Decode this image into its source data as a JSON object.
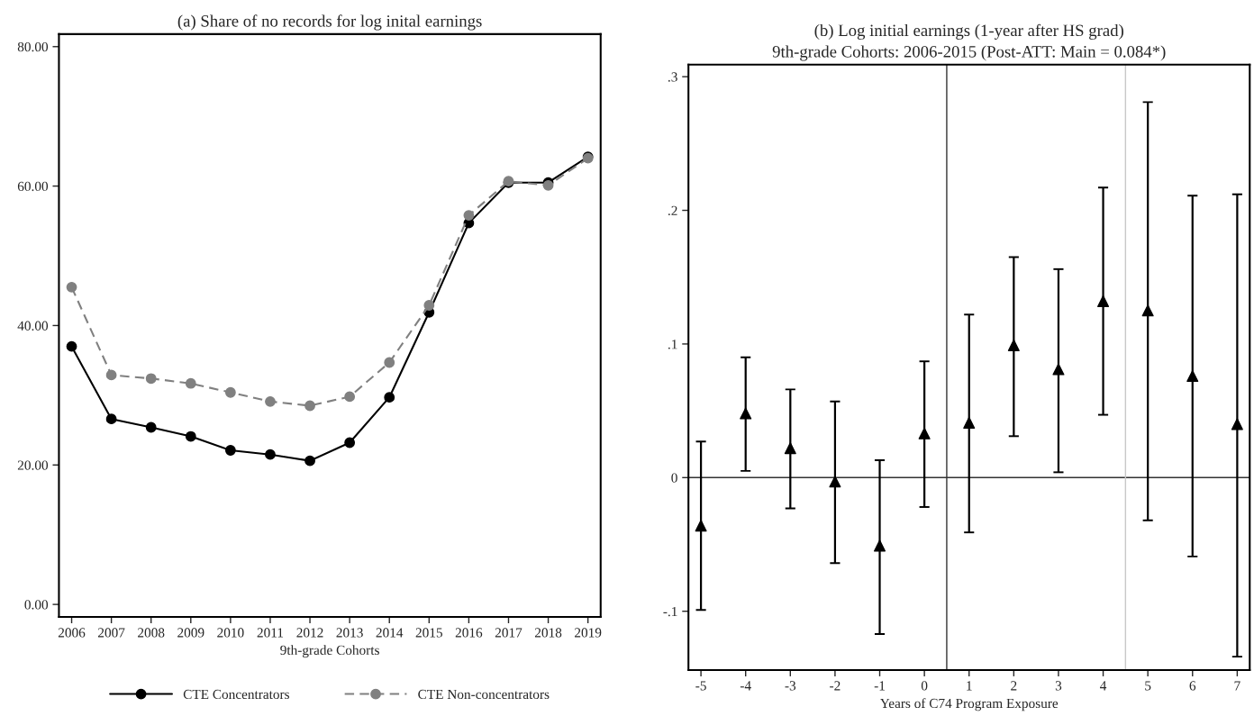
{
  "chart_data": [
    {
      "type": "line",
      "title": "(a) Share of no records for log inital earnings",
      "xlabel": "9th-grade Cohorts",
      "x": [
        2006,
        2007,
        2008,
        2009,
        2010,
        2011,
        2012,
        2013,
        2014,
        2015,
        2016,
        2017,
        2018,
        2019
      ],
      "xlim": [
        2005.68,
        2019.32
      ],
      "xticks": [
        2006,
        2007,
        2008,
        2009,
        2010,
        2011,
        2012,
        2013,
        2014,
        2015,
        2016,
        2017,
        2018,
        2019
      ],
      "ylim": [
        -1.8,
        81.8
      ],
      "yticks": [
        {
          "value": 0,
          "label": "0.00"
        },
        {
          "value": 20,
          "label": "20.00"
        },
        {
          "value": 40,
          "label": "40.00"
        },
        {
          "value": 60,
          "label": "60.00"
        },
        {
          "value": 80,
          "label": "80.00"
        }
      ],
      "marker": "circle",
      "legend": "bottom",
      "series": [
        {
          "name": "CTE Concentrators",
          "color": "#000000",
          "line_style": "solid",
          "values": [
            37.0,
            26.6,
            25.4,
            24.1,
            22.1,
            21.5,
            20.6,
            23.2,
            29.7,
            41.9,
            54.7,
            60.5,
            60.5,
            64.2
          ]
        },
        {
          "name": "CTE Non-concentrators",
          "color": "#808080",
          "line_style": "dashed",
          "values": [
            45.5,
            32.9,
            32.4,
            31.7,
            30.4,
            29.1,
            28.5,
            29.8,
            34.7,
            42.9,
            55.8,
            60.7,
            60.1,
            64.0
          ]
        }
      ]
    },
    {
      "type": "scatter",
      "title": "(b) Log initial earnings (1-year after HS grad)",
      "subtitle": "9th-grade Cohorts: 2006-2015 (Post-ATT: Main = 0.084*)",
      "xlabel": "Years of C74 Program Exposure",
      "x": [
        -5,
        -4,
        -3,
        -2,
        -1,
        0,
        1,
        2,
        3,
        4,
        5,
        6,
        7
      ],
      "xlim": [
        -5.28,
        7.28
      ],
      "xticks": [
        -5,
        -4,
        -3,
        -2,
        -1,
        0,
        1,
        2,
        3,
        4,
        5,
        6,
        7
      ],
      "ylim": [
        -0.144,
        0.309
      ],
      "yticks": [
        {
          "value": -0.1,
          "label": "-.1"
        },
        {
          "value": 0,
          "label": "0"
        },
        {
          "value": 0.1,
          "label": ".1"
        },
        {
          "value": 0.2,
          "label": ".2"
        },
        {
          "value": 0.3,
          "label": ".3"
        }
      ],
      "marker": "triangle",
      "ref_lines": [
        {
          "axis": "y",
          "value": 0,
          "color": "#333333"
        },
        {
          "axis": "x",
          "value": 0.5,
          "color": "#333333"
        },
        {
          "axis": "x",
          "value": 4.5,
          "color": "#c8c8c8"
        }
      ],
      "series": [
        {
          "color": "#000000",
          "values": [
            -0.036,
            0.048,
            0.022,
            -0.003,
            -0.051,
            0.033,
            0.041,
            0.099,
            0.081,
            0.132,
            0.125,
            0.076,
            0.04
          ],
          "errors": [
            [
              -0.099,
              0.027
            ],
            [
              0.005,
              0.09
            ],
            [
              -0.023,
              0.066
            ],
            [
              -0.064,
              0.057
            ],
            [
              -0.117,
              0.013
            ],
            [
              -0.022,
              0.087
            ],
            [
              -0.041,
              0.122
            ],
            [
              0.031,
              0.165
            ],
            [
              0.004,
              0.156
            ],
            [
              0.047,
              0.217
            ],
            [
              -0.032,
              0.281
            ],
            [
              -0.059,
              0.211
            ],
            [
              -0.134,
              0.212
            ]
          ]
        }
      ]
    }
  ]
}
